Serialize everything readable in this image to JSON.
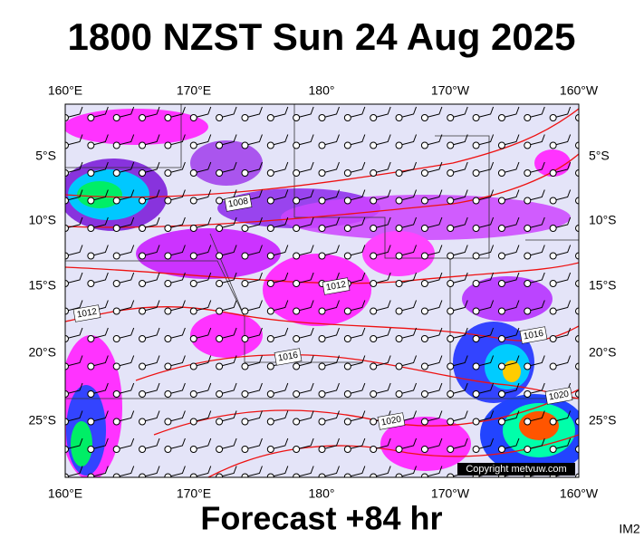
{
  "header": {
    "title": "1800 NZST Sun 24 Aug 2025"
  },
  "footer": {
    "forecast": "Forecast +84 hr",
    "image_id": "IM2"
  },
  "map": {
    "lon_labels": [
      "160°E",
      "170°E",
      "180°",
      "170°W",
      "160°W"
    ],
    "lat_labels": [
      "5°S",
      "10°S",
      "15°S",
      "20°S",
      "25°S"
    ],
    "isobar_labels": [
      1008,
      1012,
      1012,
      1016,
      1016,
      1020,
      1020
    ],
    "copyright": "Copyright metvuw.com"
  }
}
